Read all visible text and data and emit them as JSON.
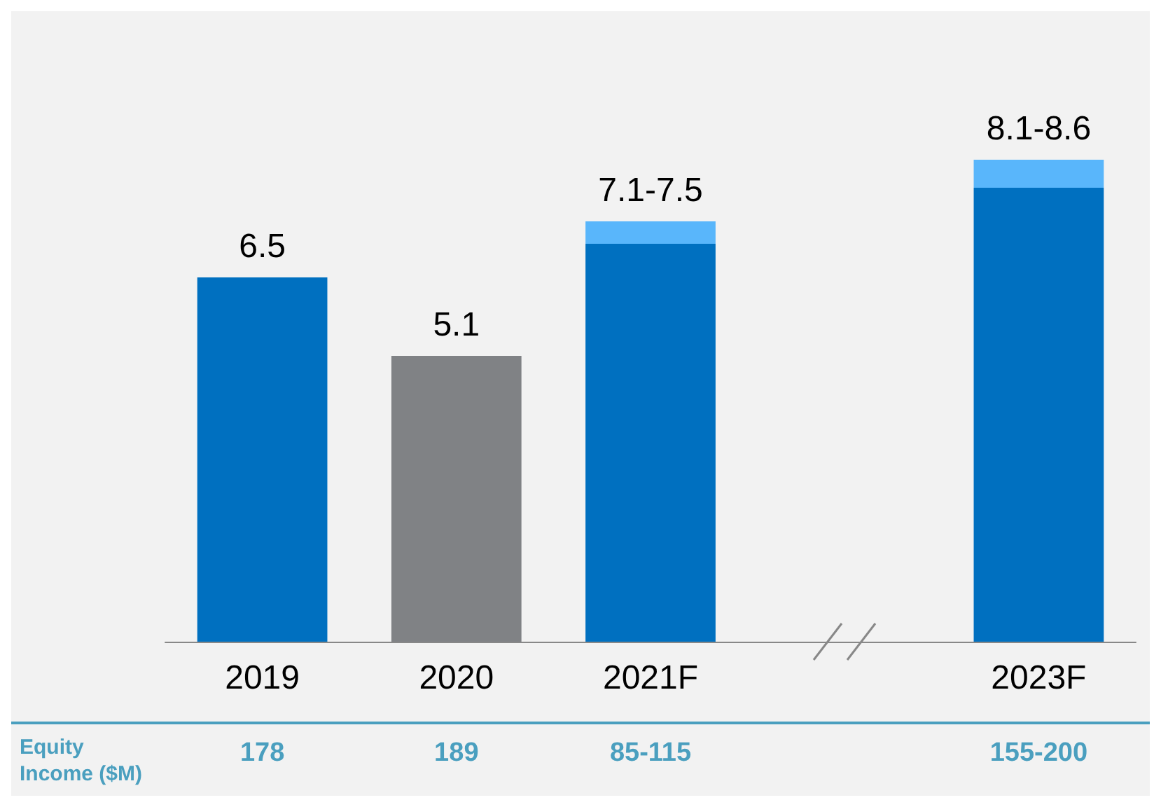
{
  "chart_data": {
    "type": "bar",
    "stacked": true,
    "categories": [
      "2019",
      "2020",
      "2021F",
      null,
      "2023F"
    ],
    "series": [
      {
        "color": "#0070c0",
        "colors": [
          "#0070c0",
          "#808285",
          "#0070c0",
          null,
          "#0070c0"
        ],
        "values": [
          6.5,
          5.1,
          7.1,
          null,
          8.1
        ],
        "value_labels": [
          "6.5",
          "5.1",
          null,
          null,
          null
        ]
      },
      {
        "color": "#59b6fb",
        "values": [
          null,
          null,
          0.4,
          null,
          0.5
        ],
        "value_labels": [
          null,
          null,
          "7.1-7.5",
          null,
          "8.1-8.6"
        ]
      }
    ],
    "annotations": [
      "Equity Income ($M)",
      "178",
      "189",
      "85-115",
      "155-200"
    ]
  }
}
